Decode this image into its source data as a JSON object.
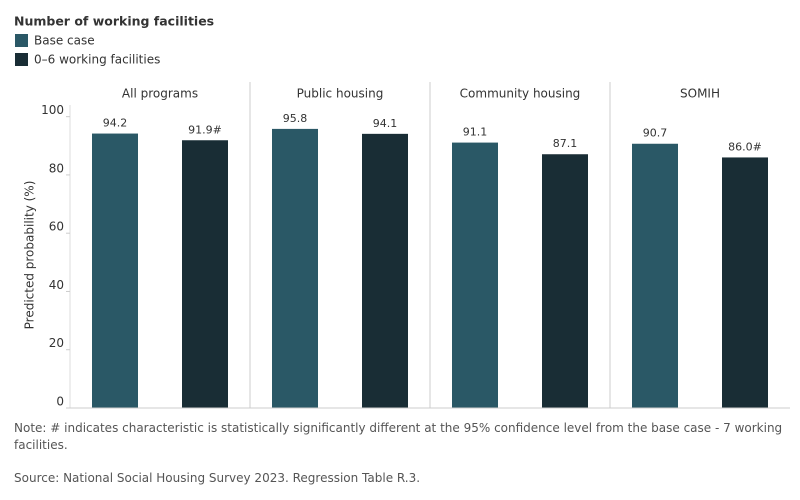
{
  "chart_data": {
    "type": "bar",
    "legend_title": "Number of working facilities",
    "y_label": "Predicted probability (%)",
    "categories": [
      "All programs",
      "Public housing",
      "Community housing",
      "SOMIH"
    ],
    "series": [
      {
        "name": "Base case",
        "color": "#2a5866",
        "values": [
          94.2,
          95.8,
          91.1,
          90.7
        ]
      },
      {
        "name": "0–6 working facilities",
        "color": "#192d35",
        "values": [
          91.9,
          94.1,
          87.1,
          86.0
        ],
        "value_labels": [
          "91.9#",
          "94.1",
          "87.1",
          "86.0#"
        ]
      }
    ],
    "ylim": [
      0,
      104
    ],
    "yticks": [
      0,
      20,
      40,
      60,
      80,
      100
    ],
    "grid": false,
    "note": "Note: # indicates characteristic is statistically significantly different at the 95% confidence level from the base case - 7 working facilities.",
    "source": "Source: National Social Housing Survey 2023. Regression Table R.3."
  }
}
